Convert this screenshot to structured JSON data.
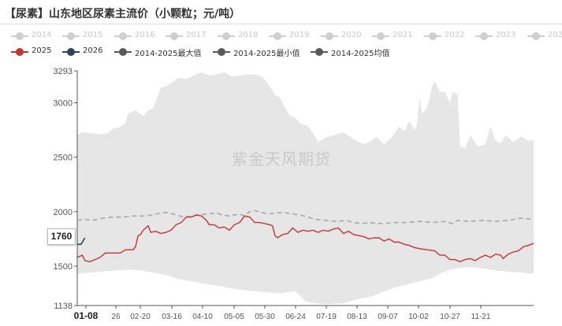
{
  "chart_data": {
    "type": "line",
    "title": "【尿素】山东地区尿素主流价（小颗粒；元/吨）",
    "watermark": "紫金天风期货",
    "ylim": [
      1138,
      3293
    ],
    "y_ticks": [
      1138,
      1500,
      2000,
      2500,
      3000,
      3293
    ],
    "x_tick_labels": [
      "01-08",
      "26",
      "02-20",
      "03-16",
      "04-10",
      "05-05",
      "05-30",
      "06-24",
      "07-19",
      "08-13",
      "09-07",
      "10-02",
      "10-27",
      "11-21"
    ],
    "last_value_label": "1760",
    "legend_years": [
      "2014",
      "2015",
      "2016",
      "2017",
      "2018",
      "2019",
      "2020",
      "2021",
      "2022",
      "2023",
      "2024"
    ],
    "legend_main": [
      "2025",
      "2026",
      "2014-2025最大值",
      "2014-2025最小值",
      "2014-2025均值"
    ],
    "colors": {
      "y2025": "#c23531",
      "y2026": "#2f4554",
      "range_band": "#e6e6e6",
      "mean": "#a8a8a8",
      "history_legend": "#cfcfcf",
      "max_min_legend": "#595959"
    },
    "x_range_days": [
      0,
      360
    ],
    "series": [
      {
        "name": "2014-2025最大值",
        "points": [
          [
            0,
            2700
          ],
          [
            4,
            2730
          ],
          [
            12,
            2720
          ],
          [
            18,
            2710
          ],
          [
            24,
            2720
          ],
          [
            28,
            2760
          ],
          [
            34,
            2780
          ],
          [
            38,
            2810
          ],
          [
            40,
            2900
          ],
          [
            46,
            2930
          ],
          [
            52,
            2880
          ],
          [
            56,
            2930
          ],
          [
            60,
            2950
          ],
          [
            66,
            3140
          ],
          [
            70,
            3150
          ],
          [
            74,
            3180
          ],
          [
            80,
            3230
          ],
          [
            86,
            3220
          ],
          [
            92,
            3250
          ],
          [
            98,
            3280
          ],
          [
            104,
            3250
          ],
          [
            110,
            3260
          ],
          [
            116,
            3280
          ],
          [
            122,
            3240
          ],
          [
            128,
            3250
          ],
          [
            134,
            3260
          ],
          [
            140,
            3260
          ],
          [
            146,
            3240
          ],
          [
            150,
            3180
          ],
          [
            156,
            3070
          ],
          [
            160,
            3050
          ],
          [
            164,
            2950
          ],
          [
            168,
            2880
          ],
          [
            172,
            2860
          ],
          [
            176,
            2810
          ],
          [
            182,
            2790
          ],
          [
            186,
            2720
          ],
          [
            190,
            2640
          ],
          [
            196,
            2680
          ],
          [
            202,
            2700
          ],
          [
            210,
            2730
          ],
          [
            216,
            2680
          ],
          [
            222,
            2640
          ],
          [
            226,
            2620
          ],
          [
            232,
            2650
          ],
          [
            236,
            2690
          ],
          [
            242,
            2620
          ],
          [
            248,
            2680
          ],
          [
            254,
            2780
          ],
          [
            258,
            2740
          ],
          [
            262,
            2830
          ],
          [
            266,
            2750
          ],
          [
            268,
            2800
          ],
          [
            270,
            3050
          ],
          [
            272,
            2900
          ],
          [
            276,
            2950
          ],
          [
            280,
            3150
          ],
          [
            282,
            3200
          ],
          [
            286,
            3100
          ],
          [
            290,
            3100
          ],
          [
            294,
            3000
          ],
          [
            296,
            3100
          ],
          [
            300,
            3080
          ],
          [
            302,
            2600
          ],
          [
            306,
            2580
          ],
          [
            310,
            2700
          ],
          [
            316,
            2600
          ],
          [
            322,
            2620
          ],
          [
            326,
            2780
          ],
          [
            330,
            2650
          ],
          [
            334,
            2630
          ],
          [
            338,
            2700
          ],
          [
            344,
            2640
          ],
          [
            350,
            2690
          ],
          [
            356,
            2650
          ],
          [
            360,
            2660
          ]
        ]
      },
      {
        "name": "2014-2025最小值",
        "points": [
          [
            0,
            1430
          ],
          [
            10,
            1440
          ],
          [
            20,
            1450
          ],
          [
            30,
            1460
          ],
          [
            40,
            1470
          ],
          [
            50,
            1460
          ],
          [
            60,
            1440
          ],
          [
            70,
            1420
          ],
          [
            80,
            1380
          ],
          [
            90,
            1360
          ],
          [
            100,
            1340
          ],
          [
            110,
            1320
          ],
          [
            120,
            1300
          ],
          [
            130,
            1280
          ],
          [
            140,
            1270
          ],
          [
            150,
            1260
          ],
          [
            160,
            1250
          ],
          [
            166,
            1260
          ],
          [
            172,
            1270
          ],
          [
            180,
            1180
          ],
          [
            186,
            1160
          ],
          [
            194,
            1150
          ],
          [
            200,
            1150
          ],
          [
            210,
            1160
          ],
          [
            216,
            1180
          ],
          [
            222,
            1200
          ],
          [
            228,
            1210
          ],
          [
            234,
            1230
          ],
          [
            240,
            1260
          ],
          [
            250,
            1300
          ],
          [
            260,
            1330
          ],
          [
            270,
            1360
          ],
          [
            280,
            1390
          ],
          [
            286,
            1430
          ],
          [
            292,
            1460
          ],
          [
            300,
            1480
          ],
          [
            310,
            1490
          ],
          [
            320,
            1480
          ],
          [
            330,
            1460
          ],
          [
            340,
            1450
          ],
          [
            350,
            1440
          ],
          [
            360,
            1430
          ]
        ]
      },
      {
        "name": "2014-2025均值",
        "points": [
          [
            0,
            1920
          ],
          [
            6,
            1930
          ],
          [
            12,
            1920
          ],
          [
            20,
            1940
          ],
          [
            28,
            1950
          ],
          [
            36,
            1950
          ],
          [
            44,
            1960
          ],
          [
            52,
            1960
          ],
          [
            60,
            1970
          ],
          [
            66,
            1990
          ],
          [
            72,
            1990
          ],
          [
            78,
            1970
          ],
          [
            84,
            1950
          ],
          [
            90,
            1960
          ],
          [
            96,
            1970
          ],
          [
            104,
            1980
          ],
          [
            110,
            1990
          ],
          [
            114,
            1970
          ],
          [
            120,
            1960
          ],
          [
            128,
            1980
          ],
          [
            132,
            1960
          ],
          [
            136,
            2000
          ],
          [
            140,
            2010
          ],
          [
            146,
            1990
          ],
          [
            152,
            1980
          ],
          [
            158,
            1990
          ],
          [
            164,
            1990
          ],
          [
            170,
            1980
          ],
          [
            176,
            1970
          ],
          [
            182,
            1950
          ],
          [
            188,
            1930
          ],
          [
            196,
            1920
          ],
          [
            204,
            1910
          ],
          [
            212,
            1920
          ],
          [
            218,
            1900
          ],
          [
            224,
            1890
          ],
          [
            230,
            1900
          ],
          [
            240,
            1890
          ],
          [
            250,
            1900
          ],
          [
            260,
            1900
          ],
          [
            270,
            1910
          ],
          [
            280,
            1900
          ],
          [
            290,
            1910
          ],
          [
            296,
            1890
          ],
          [
            300,
            1920
          ],
          [
            310,
            1910
          ],
          [
            320,
            1920
          ],
          [
            330,
            1910
          ],
          [
            340,
            1920
          ],
          [
            350,
            1940
          ],
          [
            360,
            1930
          ]
        ]
      },
      {
        "name": "2025",
        "points": [
          [
            0,
            1580
          ],
          [
            4,
            1600
          ],
          [
            6,
            1550
          ],
          [
            10,
            1540
          ],
          [
            14,
            1560
          ],
          [
            18,
            1580
          ],
          [
            22,
            1620
          ],
          [
            34,
            1620
          ],
          [
            38,
            1650
          ],
          [
            44,
            1650
          ],
          [
            46,
            1680
          ],
          [
            48,
            1780
          ],
          [
            50,
            1790
          ],
          [
            52,
            1830
          ],
          [
            56,
            1870
          ],
          [
            58,
            1810
          ],
          [
            62,
            1820
          ],
          [
            66,
            1800
          ],
          [
            70,
            1810
          ],
          [
            74,
            1830
          ],
          [
            78,
            1880
          ],
          [
            82,
            1900
          ],
          [
            86,
            1950
          ],
          [
            90,
            1950
          ],
          [
            94,
            1970
          ],
          [
            98,
            1960
          ],
          [
            102,
            1920
          ],
          [
            104,
            1880
          ],
          [
            108,
            1880
          ],
          [
            112,
            1850
          ],
          [
            116,
            1860
          ],
          [
            120,
            1830
          ],
          [
            124,
            1880
          ],
          [
            128,
            1900
          ],
          [
            132,
            1960
          ],
          [
            136,
            1950
          ],
          [
            140,
            1900
          ],
          [
            144,
            1900
          ],
          [
            148,
            1890
          ],
          [
            152,
            1880
          ],
          [
            154,
            1870
          ],
          [
            156,
            1780
          ],
          [
            158,
            1760
          ],
          [
            162,
            1790
          ],
          [
            166,
            1800
          ],
          [
            170,
            1850
          ],
          [
            174,
            1810
          ],
          [
            178,
            1830
          ],
          [
            182,
            1820
          ],
          [
            186,
            1830
          ],
          [
            190,
            1810
          ],
          [
            194,
            1830
          ],
          [
            198,
            1820
          ],
          [
            202,
            1840
          ],
          [
            206,
            1850
          ],
          [
            210,
            1800
          ],
          [
            214,
            1820
          ],
          [
            218,
            1790
          ],
          [
            222,
            1780
          ],
          [
            226,
            1770
          ],
          [
            230,
            1750
          ],
          [
            234,
            1760
          ],
          [
            238,
            1760
          ],
          [
            242,
            1730
          ],
          [
            246,
            1750
          ],
          [
            250,
            1720
          ],
          [
            254,
            1720
          ],
          [
            258,
            1700
          ],
          [
            262,
            1690
          ],
          [
            266,
            1670
          ],
          [
            270,
            1660
          ],
          [
            276,
            1650
          ],
          [
            282,
            1640
          ],
          [
            286,
            1600
          ],
          [
            290,
            1600
          ],
          [
            294,
            1560
          ],
          [
            298,
            1560
          ],
          [
            302,
            1540
          ],
          [
            306,
            1560
          ],
          [
            310,
            1570
          ],
          [
            314,
            1550
          ],
          [
            318,
            1580
          ],
          [
            322,
            1600
          ],
          [
            326,
            1580
          ],
          [
            330,
            1610
          ],
          [
            334,
            1600
          ],
          [
            336,
            1570
          ],
          [
            340,
            1610
          ],
          [
            344,
            1630
          ],
          [
            348,
            1640
          ],
          [
            352,
            1680
          ],
          [
            356,
            1690
          ],
          [
            360,
            1710
          ]
        ]
      },
      {
        "name": "2026",
        "points": [
          [
            0,
            1700
          ],
          [
            3,
            1700
          ],
          [
            6,
            1760
          ]
        ]
      }
    ]
  }
}
